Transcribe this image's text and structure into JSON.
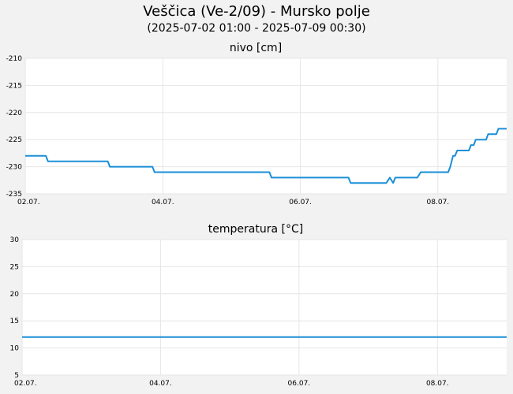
{
  "header": {
    "title": "Veščica (Ve-2/09) - Mursko polje",
    "subtitle": "(2025-07-02 01:00 - 2025-07-09 00:30)"
  },
  "colors": {
    "line": "#1a8fd6",
    "plot_bg": "#ffffff",
    "page_bg": "#f2f2f2",
    "grid": "#e6e6e6"
  },
  "chart_data": [
    {
      "type": "line",
      "title": "nivo [cm]",
      "x_ticks": [
        "02.07.",
        "04.07.",
        "06.07.",
        "08.07."
      ],
      "x_tick_days": [
        0,
        2,
        4,
        6
      ],
      "xlim_days": [
        0,
        7
      ],
      "ylim": [
        -235,
        -210
      ],
      "y_ticks": [
        -210,
        -215,
        -220,
        -225,
        -230,
        -235
      ],
      "grid": true,
      "series": [
        {
          "x_days": [
            0,
            0.3,
            0.33,
            1.2,
            1.23,
            1.85,
            1.88,
            3.55,
            3.58,
            4.7,
            4.73,
            5.25,
            5.3,
            5.35,
            5.38,
            5.42,
            5.45,
            5.7,
            5.75,
            6.15,
            6.18,
            6.2,
            6.22,
            6.25,
            6.28,
            6.32,
            6.35,
            6.45,
            6.48,
            6.52,
            6.55,
            6.6,
            6.63,
            6.7,
            6.73,
            6.85,
            6.88,
            7.0
          ],
          "y": [
            -228,
            -228,
            -229,
            -229,
            -230,
            -230,
            -231,
            -231,
            -232,
            -232,
            -233,
            -233,
            -232,
            -233,
            -232,
            -232,
            -232,
            -232,
            -231,
            -231,
            -230,
            -229,
            -228,
            -228,
            -227,
            -227,
            -227,
            -227,
            -226,
            -226,
            -225,
            -225,
            -225,
            -225,
            -224,
            -224,
            -223,
            -223
          ]
        }
      ]
    },
    {
      "type": "line",
      "title": "temperatura [°C]",
      "x_ticks": [
        "02.07.",
        "04.07.",
        "06.07.",
        "08.07."
      ],
      "x_tick_days": [
        0,
        2,
        4,
        6
      ],
      "xlim_days": [
        0,
        7
      ],
      "ylim": [
        5,
        30
      ],
      "y_ticks": [
        30,
        25,
        20,
        15,
        10,
        5
      ],
      "grid": true,
      "series": [
        {
          "x_days": [
            0,
            7
          ],
          "y": [
            12,
            12
          ]
        }
      ]
    }
  ]
}
